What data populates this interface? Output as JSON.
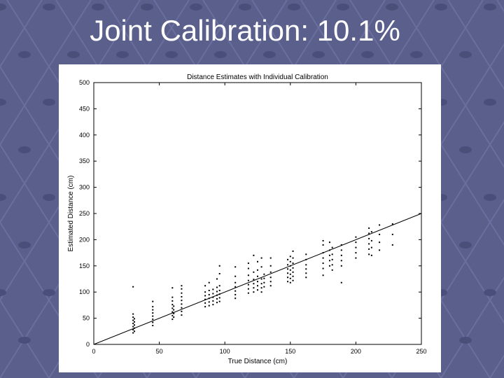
{
  "slide": {
    "title": "Joint Calibration: 10.1%",
    "colors": {
      "background": "#5a5f8c",
      "title": "#ffffff",
      "panel": "#ffffff"
    }
  },
  "chart_data": {
    "type": "scatter",
    "title": "Distance Estimates with Individual Calibration",
    "xlabel": "True Distance (cm)",
    "ylabel": "Estimated Distance (cm)",
    "xlim": [
      0,
      250
    ],
    "ylim": [
      0,
      500
    ],
    "xticks": [
      "0",
      "50",
      "100",
      "150",
      "200",
      "250"
    ],
    "yticks": [
      "0",
      "50",
      "100",
      "150",
      "200",
      "250",
      "300",
      "350",
      "400",
      "450",
      "500"
    ],
    "grid": false,
    "reference_line": {
      "label": "",
      "points": [
        [
          0,
          0
        ],
        [
          250,
          250
        ]
      ]
    },
    "series": [
      {
        "points": [
          [
            30,
            22
          ],
          [
            30,
            28
          ],
          [
            30,
            34
          ],
          [
            30,
            40
          ],
          [
            30,
            46
          ],
          [
            30,
            52
          ],
          [
            30,
            58
          ],
          [
            30,
            110
          ],
          [
            31,
            25
          ],
          [
            31,
            31
          ],
          [
            31,
            37
          ],
          [
            31,
            43
          ],
          [
            31,
            49
          ],
          [
            45,
            36
          ],
          [
            45,
            42
          ],
          [
            45,
            48
          ],
          [
            45,
            54
          ],
          [
            45,
            60
          ],
          [
            45,
            66
          ],
          [
            45,
            72
          ],
          [
            45,
            82
          ],
          [
            60,
            48
          ],
          [
            60,
            55
          ],
          [
            60,
            62
          ],
          [
            60,
            69
          ],
          [
            60,
            76
          ],
          [
            60,
            83
          ],
          [
            60,
            90
          ],
          [
            60,
            108
          ],
          [
            61,
            52
          ],
          [
            61,
            59
          ],
          [
            61,
            66
          ],
          [
            61,
            73
          ],
          [
            67,
            56
          ],
          [
            67,
            63
          ],
          [
            67,
            70
          ],
          [
            67,
            77
          ],
          [
            67,
            84
          ],
          [
            67,
            91
          ],
          [
            67,
            98
          ],
          [
            67,
            106
          ],
          [
            67,
            112
          ],
          [
            85,
            72
          ],
          [
            85,
            79
          ],
          [
            85,
            86
          ],
          [
            85,
            93
          ],
          [
            85,
            100
          ],
          [
            85,
            112
          ],
          [
            88,
            74
          ],
          [
            88,
            81
          ],
          [
            88,
            88
          ],
          [
            88,
            95
          ],
          [
            88,
            103
          ],
          [
            88,
            118
          ],
          [
            91,
            76
          ],
          [
            91,
            83
          ],
          [
            91,
            90
          ],
          [
            91,
            97
          ],
          [
            91,
            105
          ],
          [
            94,
            80
          ],
          [
            94,
            87
          ],
          [
            94,
            94
          ],
          [
            94,
            101
          ],
          [
            94,
            109
          ],
          [
            94,
            125
          ],
          [
            96,
            82
          ],
          [
            96,
            89
          ],
          [
            96,
            96
          ],
          [
            96,
            103
          ],
          [
            96,
            112
          ],
          [
            96,
            135
          ],
          [
            96,
            150
          ],
          [
            108,
            88
          ],
          [
            108,
            95
          ],
          [
            108,
            102
          ],
          [
            108,
            110
          ],
          [
            108,
            118
          ],
          [
            108,
            130
          ],
          [
            108,
            148
          ],
          [
            118,
            98
          ],
          [
            118,
            106
          ],
          [
            118,
            114
          ],
          [
            118,
            122
          ],
          [
            118,
            132
          ],
          [
            118,
            145
          ],
          [
            118,
            155
          ],
          [
            122,
            100
          ],
          [
            122,
            108
          ],
          [
            122,
            116
          ],
          [
            122,
            124
          ],
          [
            122,
            138
          ],
          [
            122,
            170
          ],
          [
            125,
            104
          ],
          [
            125,
            112
          ],
          [
            125,
            120
          ],
          [
            125,
            130
          ],
          [
            125,
            142
          ],
          [
            125,
            158
          ],
          [
            128,
            100
          ],
          [
            128,
            108
          ],
          [
            128,
            116
          ],
          [
            128,
            125
          ],
          [
            128,
            148
          ],
          [
            128,
            165
          ],
          [
            130,
            110
          ],
          [
            130,
            118
          ],
          [
            130,
            126
          ],
          [
            130,
            134
          ],
          [
            135,
            112
          ],
          [
            135,
            120
          ],
          [
            135,
            128
          ],
          [
            135,
            138
          ],
          [
            135,
            150
          ],
          [
            135,
            165
          ],
          [
            148,
            120
          ],
          [
            148,
            128
          ],
          [
            148,
            136
          ],
          [
            148,
            144
          ],
          [
            148,
            152
          ],
          [
            148,
            162
          ],
          [
            150,
            118
          ],
          [
            150,
            126
          ],
          [
            150,
            134
          ],
          [
            150,
            142
          ],
          [
            150,
            150
          ],
          [
            150,
            158
          ],
          [
            150,
            168
          ],
          [
            152,
            122
          ],
          [
            152,
            130
          ],
          [
            152,
            138
          ],
          [
            152,
            146
          ],
          [
            152,
            155
          ],
          [
            152,
            165
          ],
          [
            152,
            178
          ],
          [
            162,
            128
          ],
          [
            162,
            136
          ],
          [
            162,
            144
          ],
          [
            162,
            152
          ],
          [
            162,
            162
          ],
          [
            162,
            172
          ],
          [
            175,
            132
          ],
          [
            175,
            145
          ],
          [
            175,
            155
          ],
          [
            175,
            165
          ],
          [
            175,
            175
          ],
          [
            175,
            190
          ],
          [
            175,
            198
          ],
          [
            180,
            150
          ],
          [
            180,
            160
          ],
          [
            180,
            170
          ],
          [
            180,
            180
          ],
          [
            180,
            195
          ],
          [
            182,
            142
          ],
          [
            182,
            152
          ],
          [
            182,
            162
          ],
          [
            182,
            172
          ],
          [
            182,
            185
          ],
          [
            189,
            118
          ],
          [
            189,
            150
          ],
          [
            189,
            160
          ],
          [
            189,
            170
          ],
          [
            189,
            180
          ],
          [
            189,
            190
          ],
          [
            200,
            165
          ],
          [
            200,
            175
          ],
          [
            200,
            185
          ],
          [
            200,
            195
          ],
          [
            200,
            205
          ],
          [
            210,
            172
          ],
          [
            210,
            182
          ],
          [
            210,
            192
          ],
          [
            210,
            202
          ],
          [
            210,
            212
          ],
          [
            210,
            222
          ],
          [
            212,
            170
          ],
          [
            212,
            185
          ],
          [
            212,
            198
          ],
          [
            212,
            215
          ],
          [
            218,
            180
          ],
          [
            218,
            195
          ],
          [
            218,
            210
          ],
          [
            218,
            228
          ],
          [
            228,
            190
          ],
          [
            228,
            210
          ],
          [
            228,
            230
          ]
        ]
      }
    ]
  }
}
